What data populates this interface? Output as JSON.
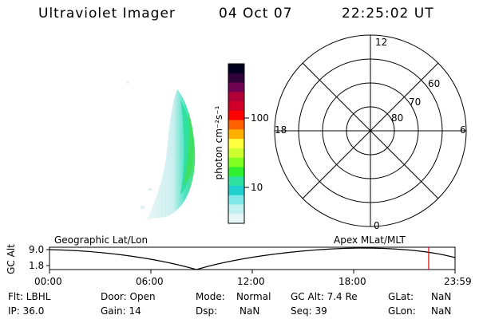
{
  "header": {
    "instrument": "Ultraviolet Imager",
    "date": "04 Oct 07",
    "time": "22:25:02 UT"
  },
  "colorbar": {
    "unit_label": "photon cm⁻²s⁻¹",
    "tick_labels": [
      "100",
      "10"
    ],
    "colors": [
      "#000020",
      "#30003a",
      "#700050",
      "#b0003a",
      "#d00028",
      "#ff0000",
      "#ff6000",
      "#ffb000",
      "#ffff40",
      "#ccff30",
      "#80ff20",
      "#30f030",
      "#30e0a0",
      "#20d0d0",
      "#80e8e8",
      "#c0f0f0",
      "#e8f8f8"
    ]
  },
  "polar_plot": {
    "mlt_labels": {
      "top": "12",
      "left": "18",
      "right": "6",
      "bottom": "0"
    },
    "lat_labels": [
      "60",
      "70",
      "80"
    ]
  },
  "alt_plot": {
    "ylabel": "GC Alt",
    "yticks": [
      "9.0",
      "1.8"
    ],
    "left_label": "Geographic Lat/Lon",
    "right_label": "Apex MLat/MLT",
    "xticks": [
      "00:00",
      "06:00",
      "12:00",
      "18:00",
      "23:59"
    ],
    "marker_fraction": 0.935
  },
  "info": {
    "row1": {
      "flt": "Flt: LBHL",
      "door": "Door: Open",
      "mode_label": "Mode:",
      "mode_value": "Normal",
      "gcalt": "GC Alt: 7.4 Re",
      "glat_label": "GLat:",
      "glat_value": "NaN"
    },
    "row2": {
      "ip": "IP: 36.0",
      "gain": "Gain: 14",
      "dsp_label": "Dsp:",
      "dsp_value": "NaN",
      "seq": "Seq: 39",
      "glon_label": "GLon:",
      "glon_value": "NaN"
    }
  }
}
